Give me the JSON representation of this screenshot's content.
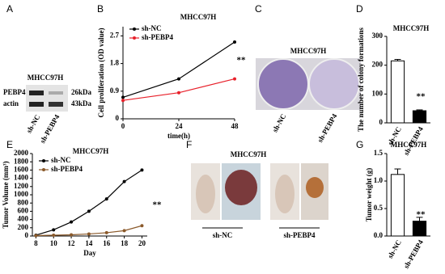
{
  "panel_labels": [
    "A",
    "B",
    "C",
    "D",
    "E",
    "F",
    "G"
  ],
  "blot": {
    "title": "MHCC97H",
    "rows": [
      "PEBP4",
      "actin"
    ],
    "sizes": [
      "26kDa",
      "43kDa"
    ],
    "lanes": [
      "sh-NC",
      "sh-PEBP4"
    ]
  },
  "colony_image": {
    "title": "MHCC97H",
    "lanes": [
      "sh-NC",
      "sh-PEBP4"
    ]
  },
  "tumor_image": {
    "title": "MHCC97H",
    "groups": [
      "sh-NC",
      "sh-PEBP4"
    ]
  },
  "chart_data": [
    {
      "type": "line",
      "title": "MHCC97H",
      "xlabel": "time(h)",
      "ylabel": "Cell proliferation (OD value)",
      "x": [
        0,
        24,
        48
      ],
      "xlim": [
        0,
        48
      ],
      "xticks": [
        0,
        24,
        48
      ],
      "ylim": [
        0,
        3
      ],
      "yticks": [
        0,
        0.9,
        1.8,
        2.7
      ],
      "series": [
        {
          "name": "sh-NC",
          "color": "#000000",
          "values": [
            0.7,
            1.3,
            2.5
          ]
        },
        {
          "name": "sh-PEBP4",
          "color": "#e8202a",
          "values": [
            0.6,
            0.85,
            1.3
          ]
        }
      ],
      "annotation": "**",
      "legend": "upper left"
    },
    {
      "type": "bar",
      "title": "MHCC97H",
      "ylabel": "The number of colony formations",
      "categories": [
        "sh-NC",
        "sh-PEBP4"
      ],
      "values": [
        215,
        42
      ],
      "errors": [
        5,
        3
      ],
      "colors": [
        "#ffffff",
        "#000000"
      ],
      "ylim": [
        0,
        300
      ],
      "yticks": [
        0,
        100,
        200,
        300
      ],
      "annotation": "**"
    },
    {
      "type": "line",
      "title": "MHCC97H",
      "xlabel": "Day",
      "ylabel": "Tumor Volume (mm³)",
      "x": [
        8,
        10,
        12,
        14,
        16,
        18,
        20
      ],
      "xlim": [
        7.6,
        20.6
      ],
      "xticks": [
        8,
        10,
        12,
        14,
        16,
        18,
        20
      ],
      "ylim": [
        0,
        2000
      ],
      "yticks": [
        0,
        200,
        400,
        600,
        800,
        1000,
        1200,
        1400,
        1600,
        1800,
        2000
      ],
      "series": [
        {
          "name": "sh-NC",
          "color": "#000000",
          "values": [
            20,
            150,
            340,
            600,
            900,
            1320,
            1600
          ]
        },
        {
          "name": "sh-PEBP4",
          "color": "#8b5a2b",
          "values": [
            10,
            20,
            30,
            50,
            80,
            130,
            250
          ]
        }
      ],
      "annotation": "**",
      "legend": "upper left"
    },
    {
      "type": "bar",
      "title": "MHCC97H",
      "ylabel": "Tumor weight (g)",
      "categories": [
        "sh-NC",
        "sh-PEBP4"
      ],
      "values": [
        1.12,
        0.27
      ],
      "errors": [
        0.1,
        0.07
      ],
      "colors": [
        "#ffffff",
        "#000000"
      ],
      "ylim": [
        0,
        1.5
      ],
      "yticks": [
        {
          "value": 0,
          "label": "0.0"
        },
        0.5,
        {
          "value": 1,
          "label": "1.0"
        },
        1.5
      ],
      "annotation": "**"
    }
  ]
}
